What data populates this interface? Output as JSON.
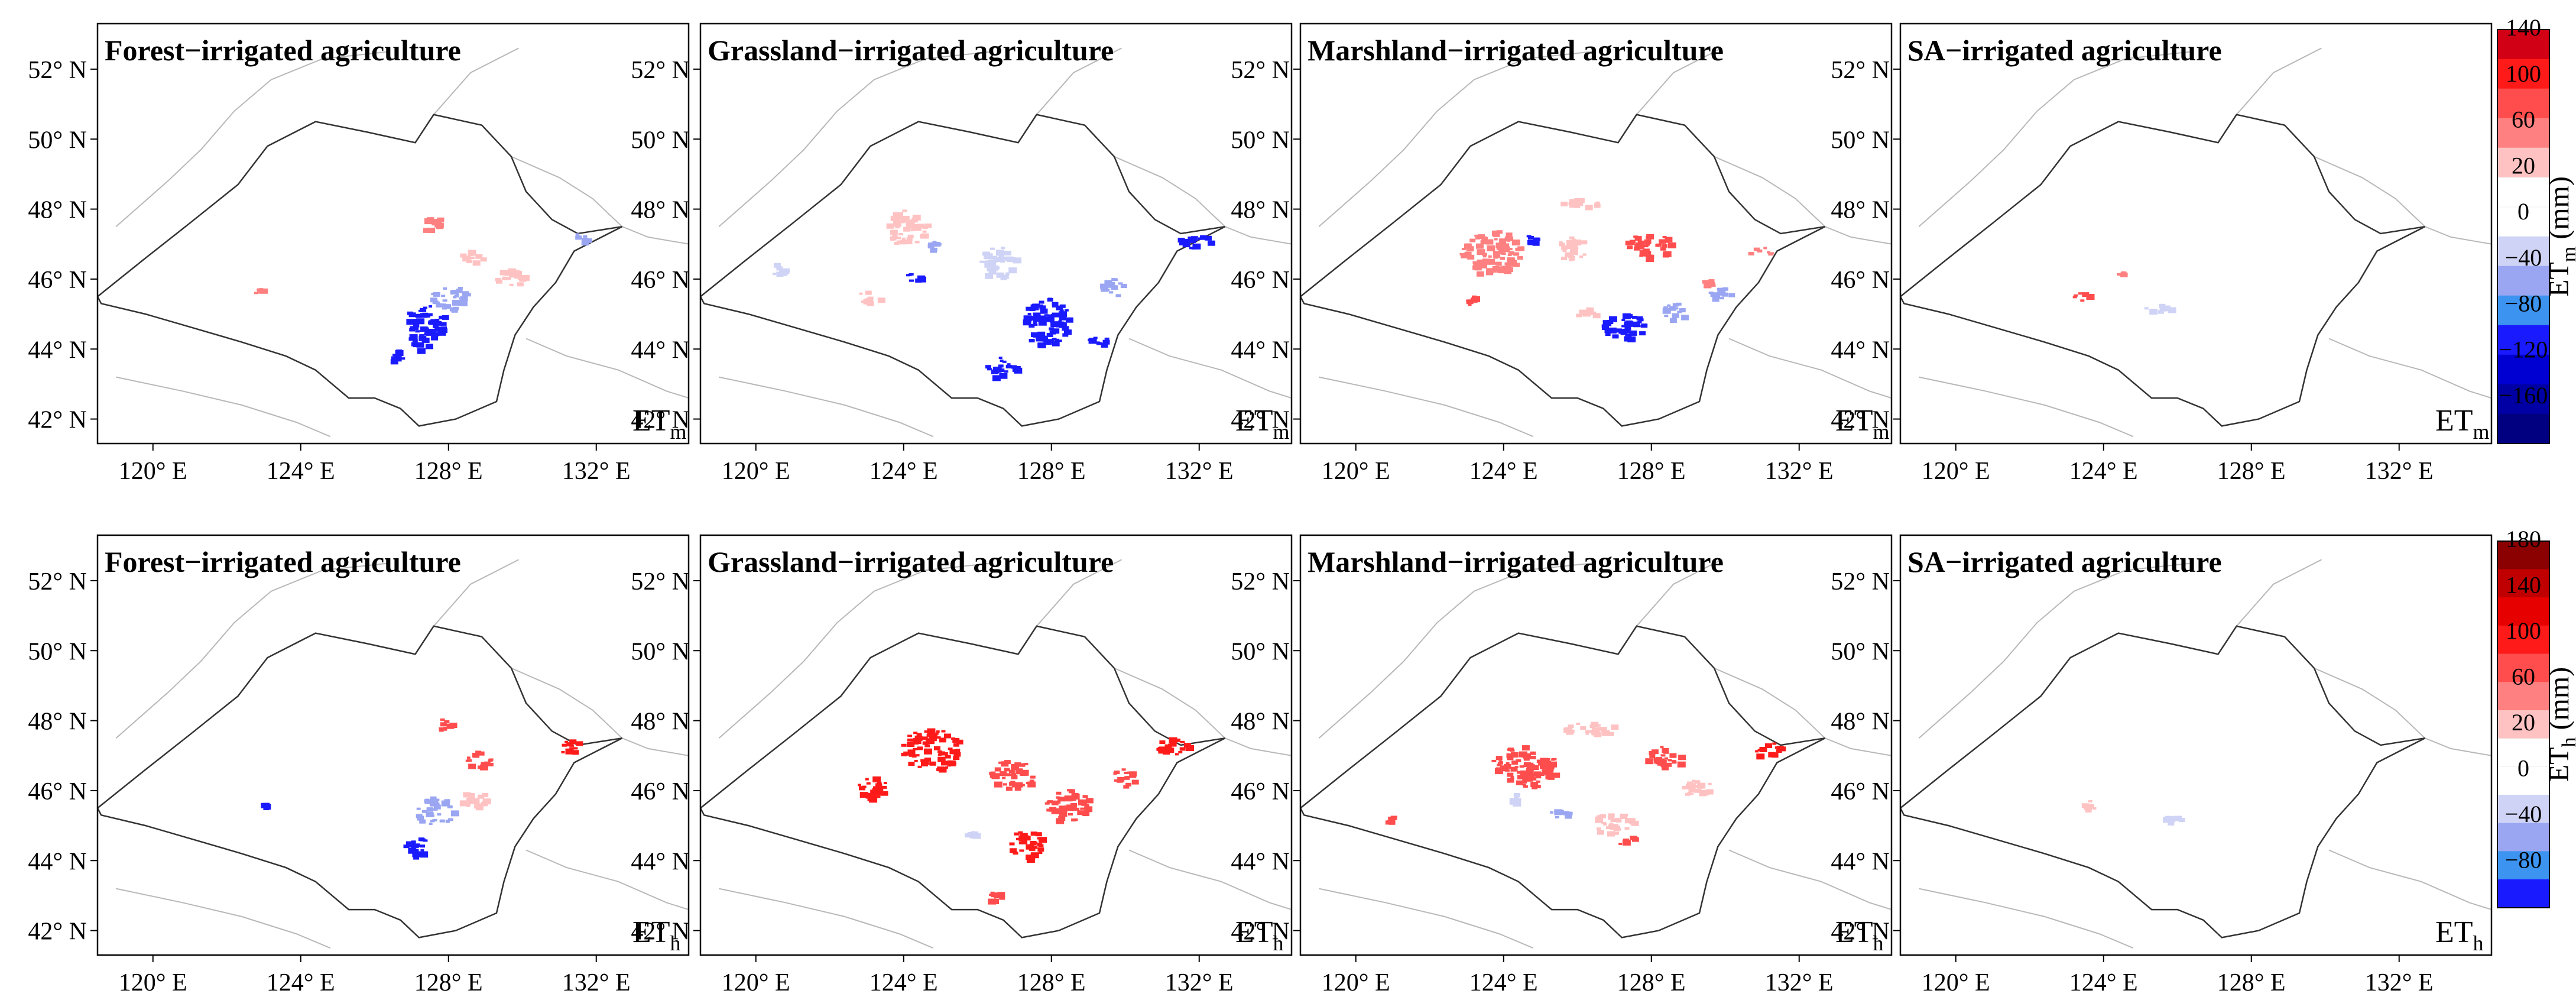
{
  "figure": {
    "panel_titles": [
      "Forest−irrigated agriculture",
      "Grassland−irrigated agriculture",
      "Marshland−irrigated agriculture",
      "SA−irrigated agriculture"
    ],
    "latitude_labels": [
      "52° N",
      "50° N",
      "48° N",
      "46° N",
      "44° N",
      "42° N"
    ],
    "longitude_labels": [
      "120° E",
      "124° E",
      "128° E",
      "132° E"
    ],
    "rows": [
      {
        "corner_label": {
          "main": "ET",
          "sub": "m"
        },
        "colorbar_label": {
          "main": "ET",
          "sub": "m",
          "unit": " (mm)"
        },
        "colorbar_ticks": [
          "140",
          "100",
          "60",
          "20",
          "0",
          "−40",
          "−80",
          "−120",
          "−160"
        ],
        "colorbar_colors": [
          "#d10014",
          "#ff1a1a",
          "#ff4d4d",
          "#ff8080",
          "#ffc2c2",
          "#ffffff",
          "#ffffff",
          "#cfd3f5",
          "#9aa6f2",
          "#3c93f0",
          "#1a1aff",
          "#0000d2",
          "#0000a5",
          "#000080"
        ]
      },
      {
        "corner_label": {
          "main": "ET",
          "sub": "h"
        },
        "colorbar_label": {
          "main": "ET",
          "sub": "h",
          "unit": " (mm)"
        },
        "colorbar_ticks": [
          "180",
          "140",
          "100",
          "60",
          "20",
          "0",
          "−40",
          "−80"
        ],
        "colorbar_colors": [
          "#8b0000",
          "#c00000",
          "#e60000",
          "#ff1a1a",
          "#ff4d4d",
          "#ff8080",
          "#ffc2c2",
          "#ffffff",
          "#ffffff",
          "#cfd3f5",
          "#9aa6f2",
          "#3c93f0",
          "#1a1aff"
        ]
      }
    ]
  },
  "map_data": {
    "extent": {
      "lon": [
        118.5,
        134.5
      ],
      "lat": [
        41.3,
        53.3
      ]
    },
    "basin_outline": [
      [
        118.5,
        45.5
      ],
      [
        119.8,
        46.6
      ],
      [
        121,
        47.6
      ],
      [
        122.3,
        48.7
      ],
      [
        123.1,
        49.8
      ],
      [
        124.4,
        50.5
      ],
      [
        125.8,
        50.2
      ],
      [
        127.1,
        49.9
      ],
      [
        127.6,
        50.7
      ],
      [
        128.9,
        50.4
      ],
      [
        129.7,
        49.5
      ],
      [
        130.1,
        48.5
      ],
      [
        130.8,
        47.7
      ],
      [
        131.5,
        47.3
      ],
      [
        132.7,
        47.5
      ],
      [
        131.4,
        46.8
      ],
      [
        130.9,
        45.9
      ],
      [
        130.3,
        45.2
      ],
      [
        129.8,
        44.4
      ],
      [
        129.5,
        43.4
      ],
      [
        129.3,
        42.5
      ],
      [
        128.2,
        42
      ],
      [
        127.2,
        41.8
      ],
      [
        126.7,
        42.3
      ],
      [
        126,
        42.6
      ],
      [
        125.3,
        42.6
      ],
      [
        124.4,
        43.4
      ],
      [
        123.6,
        43.8
      ],
      [
        122.4,
        44.2
      ],
      [
        121.1,
        44.6
      ],
      [
        119.8,
        45
      ],
      [
        118.6,
        45.3
      ],
      [
        118.5,
        45.5
      ]
    ],
    "background_lines": [
      [
        [
          119,
          47.5
        ],
        [
          120.4,
          48.8
        ],
        [
          121.3,
          49.7
        ],
        [
          122.2,
          50.8
        ],
        [
          123.2,
          51.7
        ],
        [
          124.6,
          52.3
        ],
        [
          126.4,
          52.5
        ]
      ],
      [
        [
          127.6,
          50.7
        ],
        [
          128.6,
          51.9
        ],
        [
          129.9,
          52.6
        ]
      ],
      [
        [
          129.7,
          49.5
        ],
        [
          131,
          48.9
        ],
        [
          131.9,
          48.3
        ],
        [
          132.7,
          47.5
        ],
        [
          133.4,
          47.2
        ],
        [
          134.5,
          47
        ]
      ],
      [
        [
          130.1,
          44.3
        ],
        [
          131.2,
          43.8
        ],
        [
          132.6,
          43.4
        ],
        [
          133.9,
          42.8
        ],
        [
          134.5,
          42.6
        ]
      ],
      [
        [
          119,
          43.2
        ],
        [
          120.8,
          42.8
        ],
        [
          122.4,
          42.4
        ],
        [
          123.9,
          41.9
        ],
        [
          124.8,
          41.5
        ]
      ],
      [
        [
          127.6,
          49.9
        ],
        [
          128.6,
          49.6
        ],
        [
          129.3,
          48.8
        ]
      ],
      [
        [
          125.3,
          42.6
        ],
        [
          125,
          43.8
        ],
        [
          124.3,
          45
        ]
      ]
    ],
    "value_codes": {
      "a": 80,
      "b": 50,
      "c": 15,
      "d": -15,
      "e": -40,
      "f": -80
    },
    "panels": [
      [
        {
          "label": "ETm Forest−irrigated agriculture",
          "patches": [
            [
              127.3,
              44.8,
              1.2,
              1,
              "f"
            ],
            [
              128,
              45.5,
              1,
              0.7,
              "e"
            ],
            [
              127.1,
              44.2,
              0.6,
              0.4,
              "f"
            ],
            [
              128.6,
              46.7,
              0.6,
              0.4,
              "c"
            ],
            [
              129.6,
              46.1,
              0.8,
              0.5,
              "c"
            ],
            [
              131.5,
              47.2,
              0.5,
              0.3,
              "e"
            ],
            [
              122.8,
              45.7,
              0.3,
              0.2,
              "b"
            ],
            [
              127.5,
              47.6,
              0.5,
              0.5,
              "b"
            ],
            [
              126.6,
              43.8,
              0.5,
              0.4,
              "f"
            ]
          ]
        },
        {
          "label": "ETm Grassland−irrigated agriculture",
          "patches": [
            [
              124,
              47.5,
              1.2,
              1,
              "c"
            ],
            [
              126.5,
              46.5,
              1,
              0.9,
              "d"
            ],
            [
              127.8,
              44.8,
              1.3,
              1.4,
              "f"
            ],
            [
              126.6,
              43.5,
              0.8,
              0.6,
              "f"
            ],
            [
              129.6,
              45.8,
              0.7,
              0.5,
              "e"
            ],
            [
              131.8,
              47.1,
              1,
              0.4,
              "f"
            ],
            [
              123,
              45.5,
              0.6,
              0.4,
              "c"
            ],
            [
              124.2,
              46.1,
              0.4,
              0.3,
              "f"
            ],
            [
              124.8,
              47,
              0.3,
              0.3,
              "e"
            ],
            [
              129.2,
              44.3,
              0.5,
              0.4,
              "f"
            ],
            [
              120.6,
              46.3,
              0.5,
              0.4,
              "d"
            ]
          ]
        },
        {
          "label": "ETm Marshland−irrigated agriculture",
          "patches": [
            [
              123.6,
              46.8,
              1.6,
              1.3,
              "b"
            ],
            [
              125.8,
              46.9,
              0.8,
              0.7,
              "c"
            ],
            [
              126,
              48.2,
              1,
              0.3,
              "c"
            ],
            [
              127.9,
              47,
              1.3,
              0.7,
              "a"
            ],
            [
              127.2,
              44.7,
              1.2,
              0.8,
              "f"
            ],
            [
              128.6,
              45.1,
              0.8,
              0.5,
              "e"
            ],
            [
              129.8,
              45.6,
              0.6,
              0.4,
              "e"
            ],
            [
              123.1,
              45.4,
              0.4,
              0.3,
              "a"
            ],
            [
              126.2,
              45.1,
              0.6,
              0.3,
              "c"
            ],
            [
              130.9,
              46.8,
              0.6,
              0.3,
              "b"
            ],
            [
              129.5,
              45.9,
              0.4,
              0.2,
              "b"
            ],
            [
              124.7,
              47.2,
              0.3,
              0.3,
              "f"
            ]
          ]
        },
        {
          "label": "ETm SA−irrigated agriculture",
          "patches": [
            [
              123.4,
              45.5,
              0.5,
              0.3,
              "a"
            ],
            [
              125.4,
              45.2,
              0.7,
              0.2,
              "d"
            ],
            [
              124.4,
              46.2,
              0.2,
              0.1,
              "b"
            ]
          ]
        }
      ],
      [
        {
          "label": "ETh Forest−irrigated agriculture",
          "patches": [
            [
              127.6,
              45.4,
              1,
              0.9,
              "e"
            ],
            [
              127.1,
              44.4,
              0.7,
              0.6,
              "f"
            ],
            [
              128.8,
              46.9,
              0.7,
              0.5,
              "b"
            ],
            [
              131.2,
              47.3,
              0.6,
              0.4,
              "a"
            ],
            [
              128.6,
              45.8,
              0.8,
              0.5,
              "c"
            ],
            [
              123,
              45.6,
              0.2,
              0.2,
              "f"
            ],
            [
              127.8,
              47.9,
              0.5,
              0.4,
              "b"
            ]
          ]
        },
        {
          "label": "ETh Grassland−irrigated agriculture",
          "patches": [
            [
              124.7,
              47.2,
              1.6,
              1.2,
              "a"
            ],
            [
              123.1,
              46.1,
              0.9,
              0.7,
              "a"
            ],
            [
              126.9,
              46.5,
              1.2,
              0.8,
              "b"
            ],
            [
              128.4,
              45.6,
              1.2,
              0.9,
              "b"
            ],
            [
              127.3,
              44.5,
              1,
              0.8,
              "a"
            ],
            [
              131.2,
              47.3,
              0.9,
              0.5,
              "a"
            ],
            [
              129.9,
              46.4,
              0.7,
              0.5,
              "b"
            ],
            [
              125.8,
              44.8,
              0.4,
              0.3,
              "d"
            ],
            [
              126.4,
              43,
              0.4,
              0.3,
              "b"
            ]
          ]
        },
        {
          "label": "ETh Marshland−irrigated agriculture",
          "patches": [
            [
              124.5,
              46.7,
              1.8,
              1.2,
              "b"
            ],
            [
              126.3,
              47.8,
              1.4,
              0.4,
              "c"
            ],
            [
              128.3,
              47,
              1,
              0.6,
              "b"
            ],
            [
              129.2,
              46.1,
              1,
              0.5,
              "c"
            ],
            [
              131.1,
              47.2,
              0.8,
              0.4,
              "a"
            ],
            [
              126.9,
              45.1,
              1.2,
              0.6,
              "c"
            ],
            [
              125.5,
              45.4,
              0.5,
              0.3,
              "e"
            ],
            [
              127.3,
              44.6,
              0.5,
              0.3,
              "b"
            ],
            [
              124.2,
              45.8,
              0.4,
              0.3,
              "d"
            ],
            [
              120.9,
              45.2,
              0.3,
              0.2,
              "b"
            ]
          ]
        },
        {
          "label": "ETh SA−irrigated agriculture",
          "patches": [
            [
              123.5,
              45.6,
              0.5,
              0.3,
              "c"
            ],
            [
              125.8,
              45.2,
              0.8,
              0.2,
              "d"
            ]
          ]
        }
      ]
    ]
  }
}
